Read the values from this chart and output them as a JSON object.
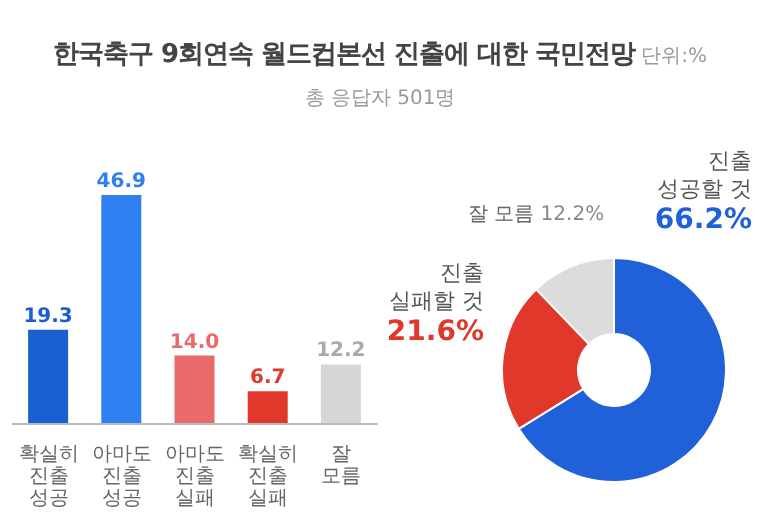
{
  "chart_data": [
    {
      "type": "bar",
      "title": "한국축구 9회연속 월드컵본선 진출에 대한 국민전망",
      "subtitle": "총 응답자 501명",
      "annotations": [
        "단위:%"
      ],
      "categories": [
        "확실히 진출 성공",
        "아마도 진출 성공",
        "아마도 진출 실패",
        "확실히 진출 실패",
        "잘 모름"
      ],
      "values": [
        19.3,
        46.9,
        14.0,
        6.7,
        12.2
      ],
      "colors": [
        "#1a5fd0",
        "#2e80f0",
        "#e86a6a",
        "#e0382a",
        "#d6d6d6"
      ],
      "value_labels": [
        "19.3",
        "46.9",
        "14.0",
        "6.7",
        "12.2"
      ]
    },
    {
      "type": "donut",
      "categories": [
        "진출 성공할 것",
        "진출 실패할 것",
        "잘 모름"
      ],
      "values": [
        66.2,
        21.6,
        12.2
      ],
      "colors": [
        "#2060d8",
        "#e0382a",
        "#dcdcdc"
      ],
      "value_labels": [
        "66.2%",
        "21.6%",
        "12.2%"
      ]
    }
  ]
}
